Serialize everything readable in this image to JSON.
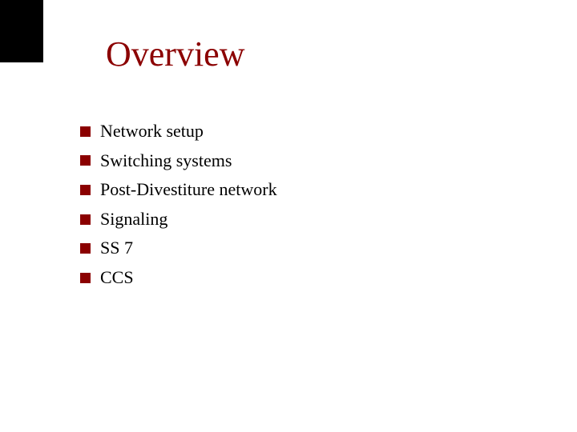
{
  "slide": {
    "title": "Overview",
    "title_color": "#8b0000",
    "title_fontsize": 44,
    "background_color": "#ffffff",
    "left_bar": {
      "color": "#000000",
      "width": 54,
      "height": 78
    },
    "bullets": {
      "marker_color": "#8b0000",
      "marker_size": 13,
      "text_color": "#000000",
      "text_fontsize": 22,
      "items": [
        "Network setup",
        "Switching systems",
        "Post-Divestiture network",
        "Signaling",
        "SS 7",
        "CCS"
      ]
    }
  }
}
